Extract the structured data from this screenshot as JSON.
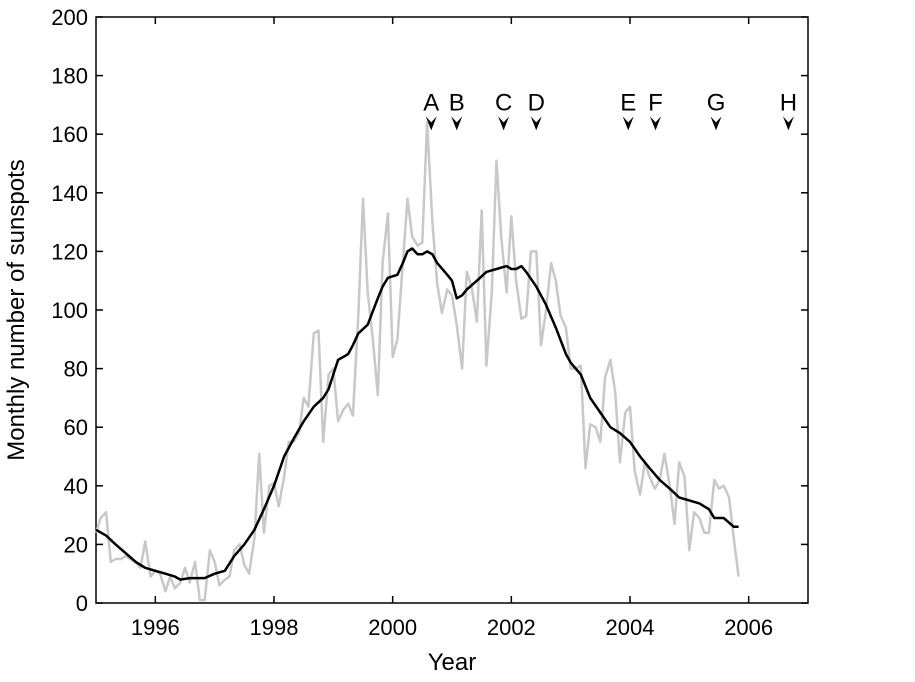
{
  "chart_data": {
    "type": "line",
    "xlabel": "Year",
    "ylabel": "Monthly number of sunspots",
    "xlim": [
      1995,
      2007
    ],
    "ylim": [
      0,
      200
    ],
    "x_ticks": [
      1996,
      1998,
      2000,
      2002,
      2004,
      2006
    ],
    "y_ticks": [
      0,
      20,
      40,
      60,
      80,
      100,
      120,
      140,
      160,
      180,
      200
    ],
    "grid": false,
    "legend": "none",
    "colors": {
      "monthly": "#c8c8c8",
      "smoothed": "#000000"
    },
    "series": [
      {
        "style": "monthly",
        "points": [
          [
            1995.0,
            24
          ],
          [
            1995.08,
            29
          ],
          [
            1995.17,
            31
          ],
          [
            1995.25,
            14
          ],
          [
            1995.33,
            15
          ],
          [
            1995.42,
            15
          ],
          [
            1995.5,
            16
          ],
          [
            1995.58,
            15
          ],
          [
            1995.67,
            14
          ],
          [
            1995.75,
            12
          ],
          [
            1995.83,
            21
          ],
          [
            1995.92,
            9
          ],
          [
            1996.0,
            11
          ],
          [
            1996.08,
            10
          ],
          [
            1996.17,
            4
          ],
          [
            1996.25,
            9
          ],
          [
            1996.33,
            5
          ],
          [
            1996.42,
            7
          ],
          [
            1996.5,
            12
          ],
          [
            1996.58,
            7
          ],
          [
            1996.67,
            14
          ],
          [
            1996.75,
            1
          ],
          [
            1996.83,
            1
          ],
          [
            1996.92,
            18
          ],
          [
            1997.0,
            14
          ],
          [
            1997.08,
            6
          ],
          [
            1997.17,
            8
          ],
          [
            1997.25,
            9
          ],
          [
            1997.33,
            18
          ],
          [
            1997.42,
            20
          ],
          [
            1997.5,
            13
          ],
          [
            1997.58,
            10
          ],
          [
            1997.67,
            22
          ],
          [
            1997.75,
            51
          ],
          [
            1997.83,
            24
          ],
          [
            1997.92,
            40
          ],
          [
            1998.0,
            41
          ],
          [
            1998.08,
            33
          ],
          [
            1998.17,
            43
          ],
          [
            1998.25,
            55
          ],
          [
            1998.33,
            55
          ],
          [
            1998.42,
            58
          ],
          [
            1998.5,
            70
          ],
          [
            1998.58,
            67
          ],
          [
            1998.67,
            92
          ],
          [
            1998.75,
            93
          ],
          [
            1998.83,
            55
          ],
          [
            1998.92,
            78
          ],
          [
            1999.0,
            80
          ],
          [
            1999.08,
            62
          ],
          [
            1999.17,
            66
          ],
          [
            1999.25,
            68
          ],
          [
            1999.33,
            64
          ],
          [
            1999.42,
            98
          ],
          [
            1999.5,
            138
          ],
          [
            1999.58,
            106
          ],
          [
            1999.67,
            89
          ],
          [
            1999.75,
            71
          ],
          [
            1999.83,
            116
          ],
          [
            1999.92,
            133
          ],
          [
            2000.0,
            84
          ],
          [
            2000.08,
            90
          ],
          [
            2000.17,
            116
          ],
          [
            2000.25,
            138
          ],
          [
            2000.33,
            125
          ],
          [
            2000.42,
            122
          ],
          [
            2000.5,
            123
          ],
          [
            2000.58,
            164
          ],
          [
            2000.67,
            130
          ],
          [
            2000.75,
            109
          ],
          [
            2000.83,
            99
          ],
          [
            2000.92,
            107
          ],
          [
            2001.0,
            105
          ],
          [
            2001.08,
            95
          ],
          [
            2001.17,
            80
          ],
          [
            2001.25,
            113
          ],
          [
            2001.33,
            108
          ],
          [
            2001.42,
            96
          ],
          [
            2001.5,
            134
          ],
          [
            2001.58,
            81
          ],
          [
            2001.67,
            106
          ],
          [
            2001.75,
            151
          ],
          [
            2001.83,
            125
          ],
          [
            2001.92,
            106
          ],
          [
            2002.0,
            132
          ],
          [
            2002.08,
            110
          ],
          [
            2002.17,
            97
          ],
          [
            2002.25,
            98
          ],
          [
            2002.33,
            120
          ],
          [
            2002.42,
            120
          ],
          [
            2002.5,
            88
          ],
          [
            2002.58,
            99
          ],
          [
            2002.67,
            116
          ],
          [
            2002.75,
            110
          ],
          [
            2002.83,
            98
          ],
          [
            2002.92,
            94
          ],
          [
            2003.0,
            80
          ],
          [
            2003.08,
            80
          ],
          [
            2003.17,
            81
          ],
          [
            2003.25,
            46
          ],
          [
            2003.33,
            61
          ],
          [
            2003.42,
            60
          ],
          [
            2003.5,
            55
          ],
          [
            2003.58,
            77
          ],
          [
            2003.67,
            83
          ],
          [
            2003.75,
            72
          ],
          [
            2003.83,
            48
          ],
          [
            2003.92,
            65
          ],
          [
            2004.0,
            67
          ],
          [
            2004.08,
            45
          ],
          [
            2004.17,
            37
          ],
          [
            2004.25,
            48
          ],
          [
            2004.33,
            43
          ],
          [
            2004.42,
            39
          ],
          [
            2004.5,
            42
          ],
          [
            2004.58,
            51
          ],
          [
            2004.67,
            40
          ],
          [
            2004.75,
            27
          ],
          [
            2004.83,
            48
          ],
          [
            2004.92,
            43
          ],
          [
            2005.0,
            18
          ],
          [
            2005.08,
            31
          ],
          [
            2005.17,
            29
          ],
          [
            2005.25,
            24
          ],
          [
            2005.33,
            24
          ],
          [
            2005.42,
            42
          ],
          [
            2005.5,
            39
          ],
          [
            2005.58,
            40
          ],
          [
            2005.67,
            36
          ],
          [
            2005.75,
            22
          ],
          [
            2005.83,
            9
          ]
        ]
      },
      {
        "style": "smoothed",
        "points": [
          [
            1995.0,
            25
          ],
          [
            1995.17,
            23
          ],
          [
            1995.33,
            20
          ],
          [
            1995.5,
            17
          ],
          [
            1995.67,
            14
          ],
          [
            1995.83,
            12
          ],
          [
            1996.0,
            11
          ],
          [
            1996.17,
            10
          ],
          [
            1996.33,
            9
          ],
          [
            1996.42,
            8
          ],
          [
            1996.58,
            8.5
          ],
          [
            1996.83,
            8.5
          ],
          [
            1997.0,
            10
          ],
          [
            1997.17,
            11
          ],
          [
            1997.33,
            16
          ],
          [
            1997.5,
            20
          ],
          [
            1997.67,
            25
          ],
          [
            1997.83,
            32
          ],
          [
            1998.0,
            40
          ],
          [
            1998.17,
            50
          ],
          [
            1998.33,
            56
          ],
          [
            1998.5,
            62
          ],
          [
            1998.67,
            67
          ],
          [
            1998.83,
            70
          ],
          [
            1998.92,
            73
          ],
          [
            1999.0,
            78
          ],
          [
            1999.08,
            83
          ],
          [
            1999.17,
            84
          ],
          [
            1999.25,
            85
          ],
          [
            1999.33,
            88
          ],
          [
            1999.42,
            92
          ],
          [
            1999.58,
            95
          ],
          [
            1999.75,
            104
          ],
          [
            1999.83,
            108
          ],
          [
            1999.92,
            111
          ],
          [
            2000.08,
            112
          ],
          [
            2000.17,
            116
          ],
          [
            2000.25,
            120
          ],
          [
            2000.33,
            121
          ],
          [
            2000.42,
            119
          ],
          [
            2000.5,
            119
          ],
          [
            2000.58,
            120
          ],
          [
            2000.67,
            119
          ],
          [
            2000.75,
            116
          ],
          [
            2000.92,
            112
          ],
          [
            2001.0,
            110
          ],
          [
            2001.08,
            104
          ],
          [
            2001.17,
            105
          ],
          [
            2001.25,
            107
          ],
          [
            2001.42,
            110
          ],
          [
            2001.58,
            113
          ],
          [
            2001.75,
            114
          ],
          [
            2001.92,
            115
          ],
          [
            2002.0,
            114
          ],
          [
            2002.08,
            114
          ],
          [
            2002.17,
            115
          ],
          [
            2002.25,
            113
          ],
          [
            2002.42,
            108
          ],
          [
            2002.58,
            102
          ],
          [
            2002.75,
            94
          ],
          [
            2002.92,
            85
          ],
          [
            2003.0,
            82
          ],
          [
            2003.17,
            78
          ],
          [
            2003.33,
            70
          ],
          [
            2003.5,
            65
          ],
          [
            2003.67,
            60
          ],
          [
            2003.83,
            58
          ],
          [
            2004.0,
            55
          ],
          [
            2004.17,
            50
          ],
          [
            2004.33,
            46
          ],
          [
            2004.5,
            42
          ],
          [
            2004.67,
            39
          ],
          [
            2004.83,
            36
          ],
          [
            2005.0,
            35
          ],
          [
            2005.17,
            34
          ],
          [
            2005.33,
            32
          ],
          [
            2005.42,
            29
          ],
          [
            2005.58,
            29
          ],
          [
            2005.75,
            26
          ],
          [
            2005.83,
            26
          ]
        ]
      }
    ],
    "annotations": [
      {
        "label": "A",
        "x": 2000.65,
        "y": 162
      },
      {
        "label": "B",
        "x": 2001.08,
        "y": 162
      },
      {
        "label": "C",
        "x": 2001.87,
        "y": 162
      },
      {
        "label": "D",
        "x": 2002.42,
        "y": 162
      },
      {
        "label": "E",
        "x": 2003.97,
        "y": 162
      },
      {
        "label": "F",
        "x": 2004.43,
        "y": 162
      },
      {
        "label": "G",
        "x": 2005.45,
        "y": 162
      },
      {
        "label": "H",
        "x": 2006.67,
        "y": 162
      }
    ]
  }
}
